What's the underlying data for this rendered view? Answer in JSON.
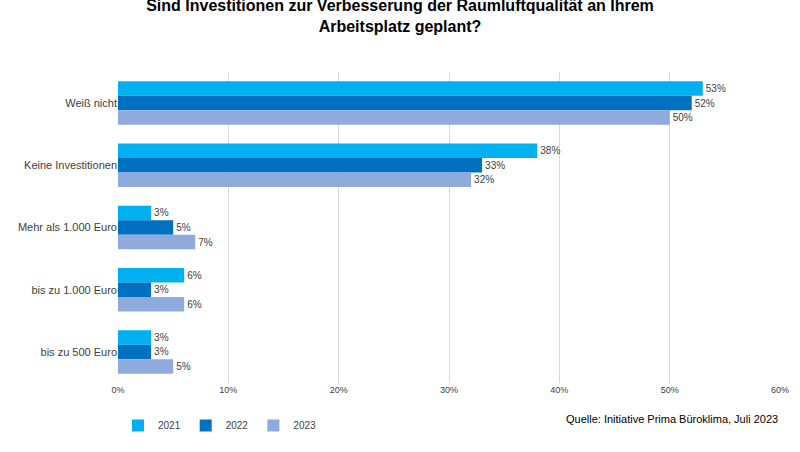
{
  "chart_data": {
    "type": "bar",
    "orientation": "horizontal",
    "title": "Sind Investitionen zur Verbesserung der Raumluftqualität an Ihrem Arbeitsplatz geplant?",
    "categories": [
      "Weiß nicht",
      "Keine Investitionen",
      "Mehr als 1.000 Euro",
      "bis zu 1.000 Euro",
      "bis zu 500 Euro"
    ],
    "series": [
      {
        "name": "2021",
        "color": "#00b0f0",
        "values": [
          53,
          38,
          3,
          6,
          3
        ],
        "value_labels": [
          "53%",
          "38%",
          "3%",
          "6%",
          "3%"
        ]
      },
      {
        "name": "2022",
        "color": "#0070c0",
        "values": [
          52,
          33,
          5,
          3,
          3
        ],
        "value_labels": [
          "52%",
          "33%",
          "5%",
          "3%",
          "3%"
        ]
      },
      {
        "name": "2023",
        "color": "#8faadc",
        "values": [
          50,
          32,
          7,
          6,
          5
        ],
        "value_labels": [
          "50%",
          "32%",
          "7%",
          "6%",
          "5%"
        ]
      }
    ],
    "xlim": [
      0,
      60
    ],
    "xticks": [
      {
        "value": 0,
        "label": "0%"
      },
      {
        "value": 10,
        "label": "10%"
      },
      {
        "value": 20,
        "label": "20%"
      },
      {
        "value": 30,
        "label": "30%"
      },
      {
        "value": 40,
        "label": "40%"
      },
      {
        "value": 50,
        "label": "50%"
      },
      {
        "value": 60,
        "label": "60%"
      }
    ],
    "grid": true,
    "data_labels": true,
    "legend": "bottom left",
    "annotations": [
      "Quelle: Initiative Prima Büroklima, Juli 2023"
    ]
  }
}
